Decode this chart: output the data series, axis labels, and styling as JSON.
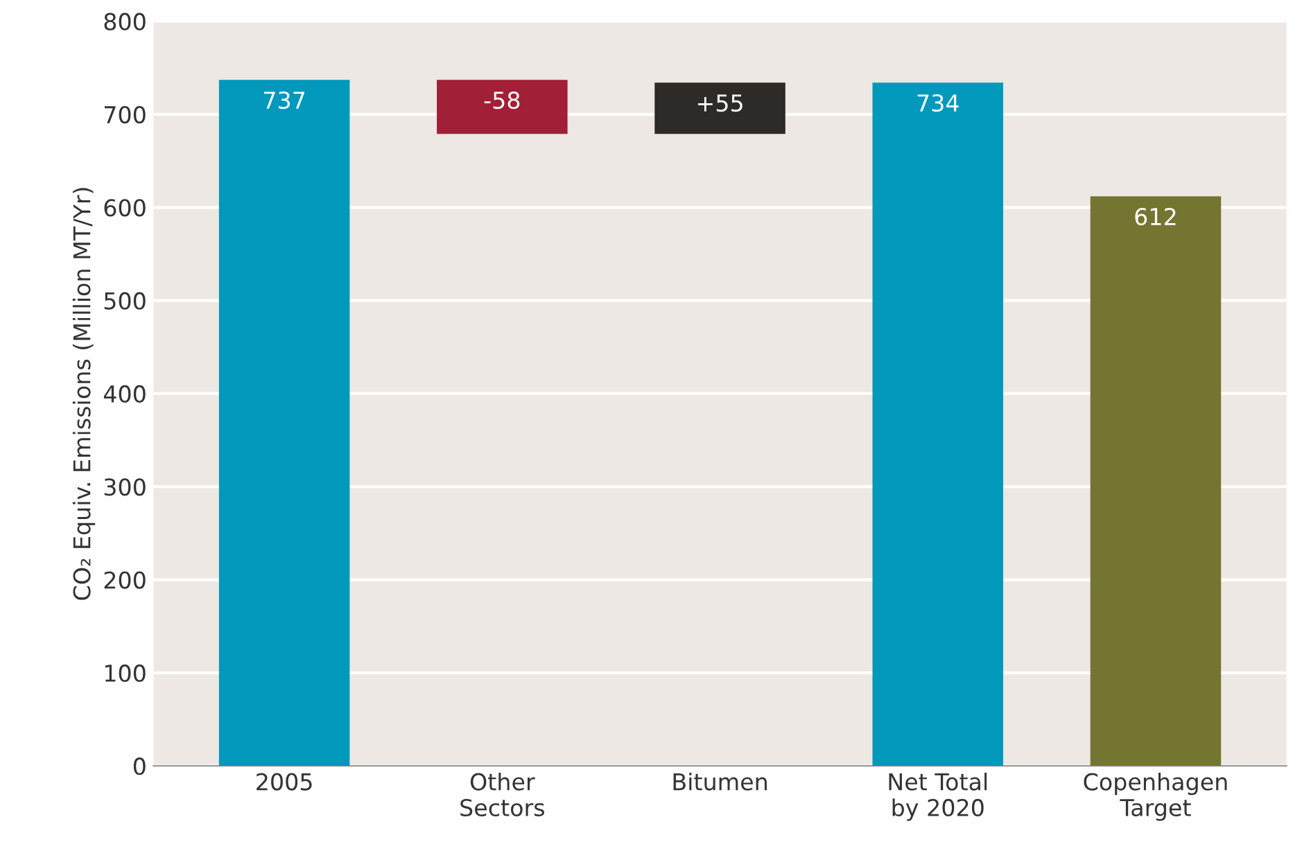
{
  "chart_data": {
    "type": "bar",
    "ylabel": "CO₂ Equiv. Emissions (Million MT/Yr)",
    "categories": [
      "2005",
      "Other\nSectors",
      "Bitumen",
      "Net Total\nby 2020",
      "Copenhagen\nTarget"
    ],
    "values": [
      737,
      -58,
      55,
      734,
      612
    ],
    "base": [
      0,
      737,
      679,
      0,
      0
    ],
    "colors": [
      "#0099bc",
      "#a11f37",
      "#2e2a28",
      "#0099bc",
      "#757532"
    ],
    "value_labels": [
      "737",
      "-58",
      "+55",
      "734",
      "612"
    ],
    "ylim": [
      0,
      800
    ],
    "yticks": [
      0,
      100,
      200,
      300,
      400,
      500,
      600,
      700,
      800
    ],
    "grid": "y"
  }
}
